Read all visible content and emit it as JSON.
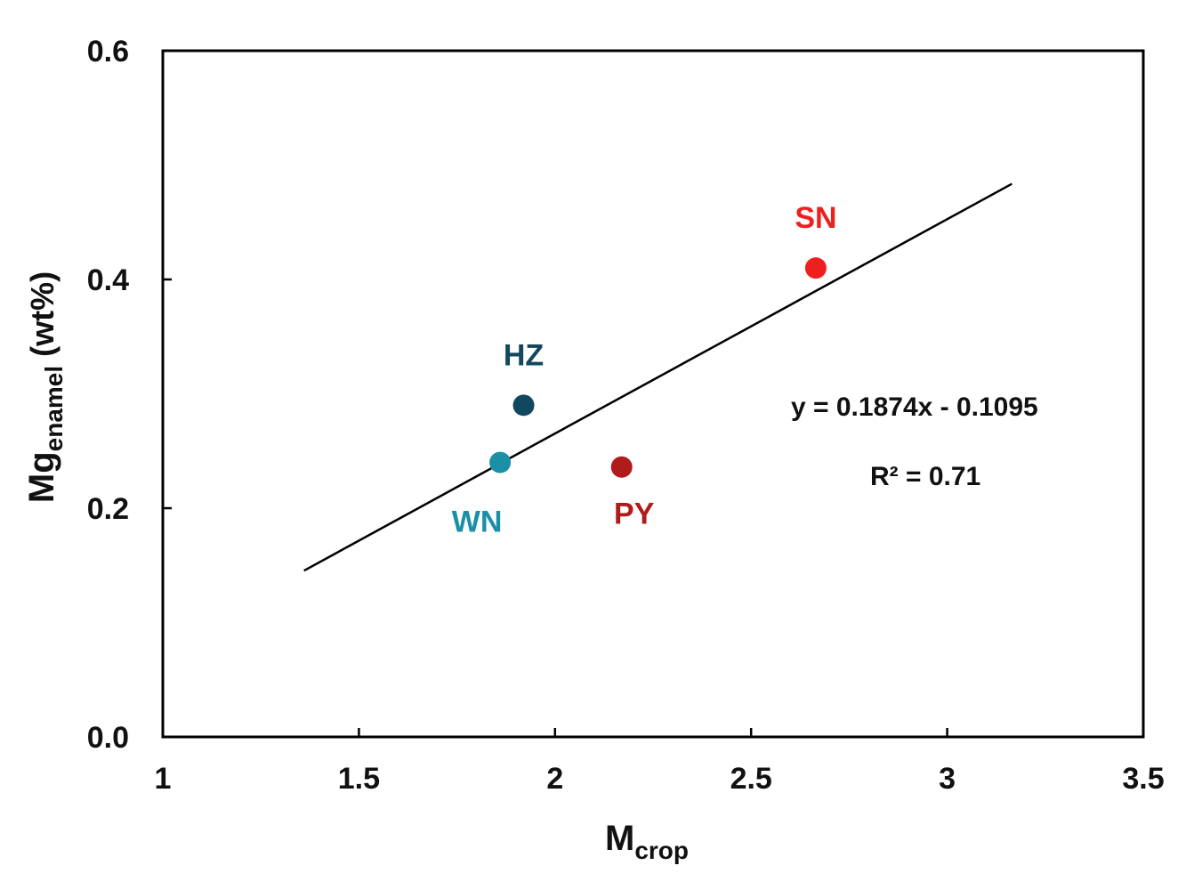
{
  "chart_data": {
    "type": "scatter",
    "xlabel": {
      "main": "M",
      "sub": "crop"
    },
    "ylabel": {
      "main": "Mg",
      "sub": "enamel",
      "unit": " (wt%)"
    },
    "xlim": [
      1,
      3.5
    ],
    "ylim": [
      0.0,
      0.6
    ],
    "x_ticks": [
      {
        "value": 1,
        "label": "1"
      },
      {
        "value": 1.5,
        "label": "1.5"
      },
      {
        "value": 2,
        "label": "2"
      },
      {
        "value": 2.5,
        "label": "2.5"
      },
      {
        "value": 3,
        "label": "3"
      },
      {
        "value": 3.5,
        "label": "3.5"
      }
    ],
    "y_ticks": [
      {
        "value": 0.0,
        "label": "0.0"
      },
      {
        "value": 0.2,
        "label": "0.2"
      },
      {
        "value": 0.4,
        "label": "0.4"
      },
      {
        "value": 0.6,
        "label": "0.6"
      }
    ],
    "grid": false,
    "points": [
      {
        "name": "HZ",
        "x": 1.92,
        "y": 0.29,
        "color": "#12485e",
        "label_position": "above"
      },
      {
        "name": "WN",
        "x": 1.86,
        "y": 0.24,
        "color": "#1a8fa6",
        "label_position": "below-left"
      },
      {
        "name": "PY",
        "x": 2.17,
        "y": 0.236,
        "color": "#b01c1c",
        "label_position": "below"
      },
      {
        "name": "SN",
        "x": 2.665,
        "y": 0.41,
        "color": "#ee1f1f",
        "label_position": "above"
      }
    ],
    "trendline": {
      "slope": 0.1874,
      "intercept": -0.1095,
      "x_start": 1.36,
      "x_end": 3.165,
      "color": "#000000"
    },
    "annotations": {
      "equation": "y = 0.1874x - 0.1095",
      "r_squared": "R² = 0.71"
    }
  }
}
